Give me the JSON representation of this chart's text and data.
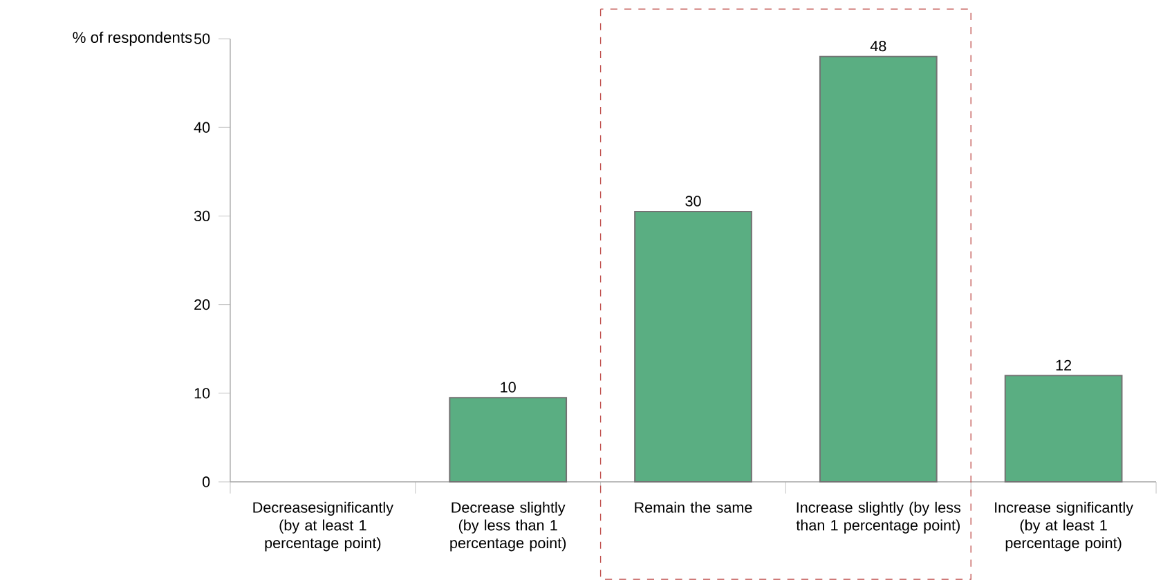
{
  "chart_data": {
    "type": "bar",
    "ylabel": "% of respondents",
    "categories": [
      "Decreasesignificantly (by at least 1 percentage point)",
      "Decrease slightly (by less than 1 percentage point)",
      "Remain the same",
      "Increase slightly (by less than 1 percentage point)",
      "Increase significantly (by at least 1 percentage point)"
    ],
    "values": [
      null,
      9.5,
      30.5,
      48,
      12
    ],
    "value_labels": [
      null,
      "10",
      "30",
      "48",
      "12"
    ],
    "color": "#5aae82",
    "ylim": [
      0,
      50
    ],
    "yticks": [
      0,
      10,
      20,
      30,
      40,
      50
    ]
  }
}
